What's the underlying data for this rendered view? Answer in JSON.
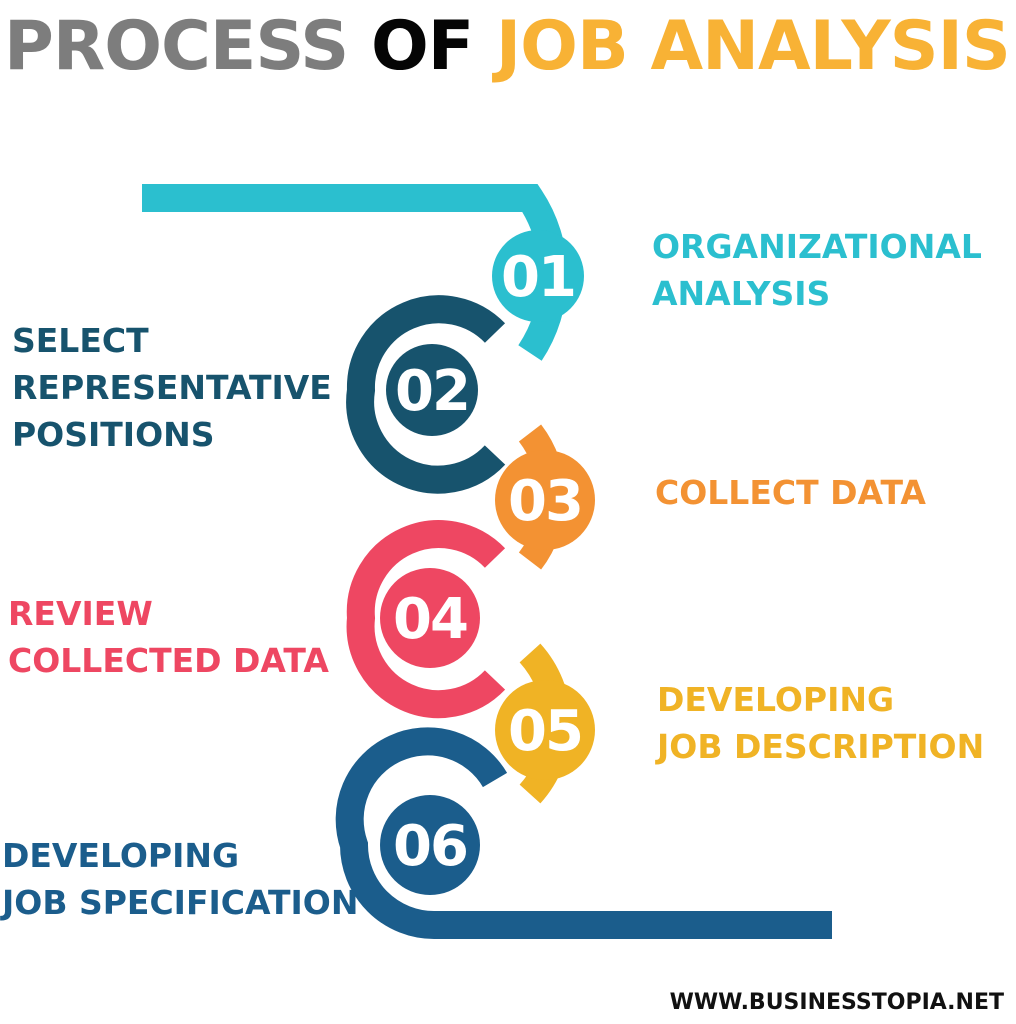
{
  "title": {
    "part1": "PROCESS ",
    "part2": "OF ",
    "part3": "JOB ANALYSIS",
    "colors": [
      "#7d7d7d",
      "#050505",
      "#f8b235"
    ]
  },
  "steps": [
    {
      "number": "01",
      "lines": [
        "ORGANIZATIONAL",
        "ANALYSIS"
      ],
      "color": "#2bbfcf"
    },
    {
      "number": "02",
      "lines": [
        "SELECT",
        "REPRESENTATIVE",
        "POSITIONS"
      ],
      "color": "#17536d"
    },
    {
      "number": "03",
      "lines": [
        "COLLECT DATA"
      ],
      "color": "#f39233"
    },
    {
      "number": "04",
      "lines": [
        "REVIEW",
        "COLLECTED DATA"
      ],
      "color": "#ee4762"
    },
    {
      "number": "05",
      "lines": [
        "DEVELOPING",
        "JOB DESCRIPTION"
      ],
      "color": "#f0b325"
    },
    {
      "number": "06",
      "lines": [
        "DEVELOPING",
        "JOB SPECIFICATION"
      ],
      "color": "#1b5d8c"
    }
  ],
  "footer": {
    "website": "WWW.BUSINESSTOPIA.NET"
  }
}
